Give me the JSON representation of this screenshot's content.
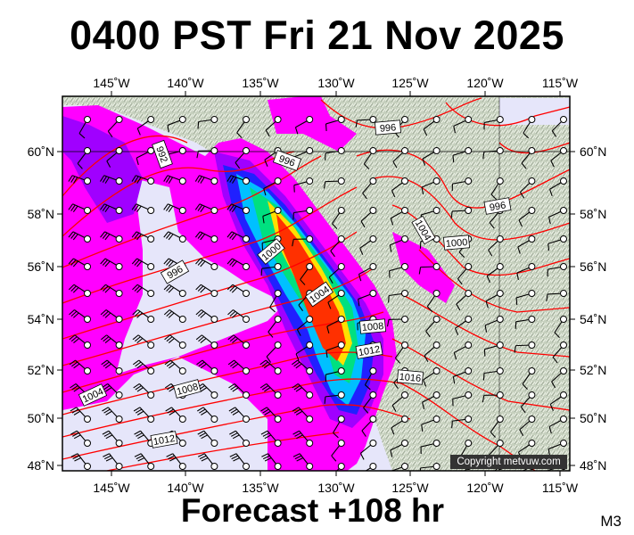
{
  "title": "0400 PST Fri 21 Nov 2025",
  "forecast_label": "Forecast +108 hr",
  "model_label": "M3",
  "copyright": "Copyright metvuw.com",
  "axes": {
    "lon_ticks": [
      "145˚W",
      "140˚W",
      "135˚W",
      "130˚W",
      "125˚W",
      "120˚W",
      "115˚W"
    ],
    "lat_ticks": [
      "60˚N",
      "58˚N",
      "56˚N",
      "54˚N",
      "52˚N",
      "50˚N",
      "48˚N"
    ]
  },
  "isobar_labels": [
    "996",
    "992",
    "996",
    "996",
    "1004",
    "1000",
    "1000",
    "996",
    "1004",
    "1008",
    "1012",
    "1016",
    "1004",
    "1008",
    "1012"
  ],
  "colors": {
    "ocean": "#e6e6fa",
    "land": "#c5cfbd",
    "isobar": "#ff0000",
    "precip_scale": [
      "#ff00ff",
      "#a000ff",
      "#2020ff",
      "#00c0ff",
      "#00e080",
      "#80ff00",
      "#ffe000",
      "#ff8000",
      "#ff3000"
    ]
  }
}
